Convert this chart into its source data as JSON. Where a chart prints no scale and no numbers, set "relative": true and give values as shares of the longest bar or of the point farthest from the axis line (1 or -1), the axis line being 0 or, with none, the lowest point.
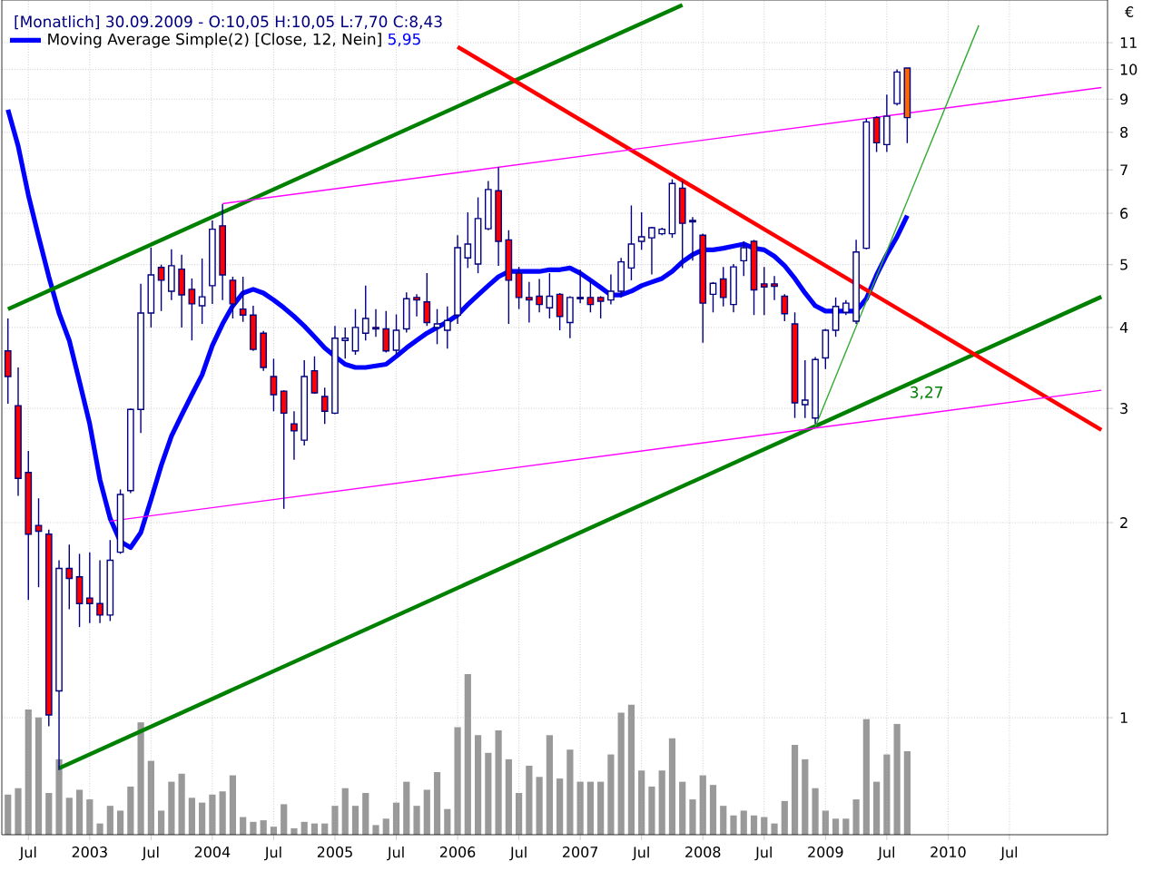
{
  "chart_data": [
    {
      "type": "candlestick",
      "title": "[Monatlich] 30.09.2009 - O:10,05 H:10,05 L:7,70 C:8,43",
      "ylabel": "€",
      "x": [
        "2002-05",
        "2002-06",
        "2002-07",
        "2002-08",
        "2002-09",
        "2002-10",
        "2002-11",
        "2002-12",
        "2003-01",
        "2003-02",
        "2003-03",
        "2003-04",
        "2003-05",
        "2003-06",
        "2003-07",
        "2003-08",
        "2003-09",
        "2003-10",
        "2003-11",
        "2003-12",
        "2004-01",
        "2004-02",
        "2004-03",
        "2004-04",
        "2004-05",
        "2004-06",
        "2004-07",
        "2004-08",
        "2004-09",
        "2004-10",
        "2004-11",
        "2004-12",
        "2005-01",
        "2005-02",
        "2005-03",
        "2005-04",
        "2005-05",
        "2005-06",
        "2005-07",
        "2005-08",
        "2005-09",
        "2005-10",
        "2005-11",
        "2005-12",
        "2006-01",
        "2006-02",
        "2006-03",
        "2006-04",
        "2006-05",
        "2006-06",
        "2006-07",
        "2006-08",
        "2006-09",
        "2006-10",
        "2006-11",
        "2006-12",
        "2007-01",
        "2007-02",
        "2007-03",
        "2007-04",
        "2007-05",
        "2007-06",
        "2007-07",
        "2007-08",
        "2007-09",
        "2007-10",
        "2007-11",
        "2007-12",
        "2008-01",
        "2008-02",
        "2008-03",
        "2008-04",
        "2008-05",
        "2008-06",
        "2008-07",
        "2008-08",
        "2008-09",
        "2008-10",
        "2008-11",
        "2008-12",
        "2009-01",
        "2009-02",
        "2009-03",
        "2009-04",
        "2009-05",
        "2009-06",
        "2009-07",
        "2009-08",
        "2009-09"
      ],
      "ohlc": [
        [
          3.68,
          4.13,
          3.05,
          3.36
        ],
        [
          3.03,
          3.47,
          2.2,
          2.34
        ],
        [
          2.39,
          2.58,
          1.52,
          1.92
        ],
        [
          1.98,
          2.18,
          1.59,
          1.94
        ],
        [
          1.92,
          1.95,
          0.97,
          1.01
        ],
        [
          1.1,
          1.75,
          0.83,
          1.7
        ],
        [
          1.7,
          1.85,
          1.47,
          1.64
        ],
        [
          1.65,
          1.79,
          1.38,
          1.5
        ],
        [
          1.53,
          1.8,
          1.4,
          1.5
        ],
        [
          1.5,
          1.75,
          1.4,
          1.44
        ],
        [
          1.44,
          1.88,
          1.41,
          1.75
        ],
        [
          1.8,
          2.25,
          1.79,
          2.21
        ],
        [
          2.24,
          3.0,
          2.22,
          2.99
        ],
        [
          2.99,
          4.67,
          2.75,
          4.21
        ],
        [
          4.21,
          5.31,
          4.0,
          4.82
        ],
        [
          4.95,
          5.0,
          4.24,
          4.73
        ],
        [
          4.55,
          5.28,
          4.41,
          4.98
        ],
        [
          4.92,
          5.18,
          4.0,
          4.49
        ],
        [
          4.58,
          4.76,
          3.82,
          4.35
        ],
        [
          4.32,
          5.11,
          4.05,
          4.46
        ],
        [
          4.64,
          5.85,
          4.35,
          5.67
        ],
        [
          5.74,
          6.2,
          4.41,
          4.82
        ],
        [
          4.73,
          4.79,
          4.13,
          4.35
        ],
        [
          4.27,
          4.79,
          4.08,
          4.18
        ],
        [
          4.18,
          4.32,
          3.68,
          3.7
        ],
        [
          3.92,
          3.95,
          3.43,
          3.47
        ],
        [
          3.36,
          3.58,
          2.97,
          3.15
        ],
        [
          3.19,
          3.2,
          2.1,
          2.95
        ],
        [
          2.84,
          2.97,
          2.5,
          2.77
        ],
        [
          2.68,
          3.56,
          2.63,
          3.36
        ],
        [
          3.43,
          3.61,
          3.16,
          3.17
        ],
        [
          3.13,
          3.23,
          2.84,
          2.97
        ],
        [
          2.95,
          4.02,
          2.94,
          3.85
        ],
        [
          3.82,
          4.0,
          3.58,
          3.85
        ],
        [
          3.68,
          4.27,
          3.63,
          4.0
        ],
        [
          3.92,
          4.64,
          3.82,
          4.13
        ],
        [
          4.0,
          4.27,
          3.87,
          3.98
        ],
        [
          3.98,
          4.24,
          3.66,
          3.68
        ],
        [
          3.69,
          4.19,
          3.63,
          3.96
        ],
        [
          3.98,
          4.53,
          3.93,
          4.43
        ],
        [
          4.45,
          4.5,
          4.16,
          4.41
        ],
        [
          4.38,
          4.85,
          4.02,
          4.07
        ],
        [
          4.0,
          4.27,
          3.77,
          4.05
        ],
        [
          3.96,
          4.31,
          3.71,
          4.1
        ],
        [
          4.18,
          5.55,
          4.05,
          5.31
        ],
        [
          5.12,
          6.02,
          4.94,
          5.38
        ],
        [
          5.01,
          6.35,
          4.85,
          5.89
        ],
        [
          5.68,
          6.73,
          5.65,
          6.53
        ],
        [
          6.5,
          7.07,
          4.98,
          5.43
        ],
        [
          5.46,
          5.65,
          4.05,
          4.73
        ],
        [
          4.85,
          4.96,
          4.27,
          4.45
        ],
        [
          4.45,
          4.7,
          4.07,
          4.41
        ],
        [
          4.47,
          4.75,
          4.22,
          4.34
        ],
        [
          4.29,
          4.85,
          4.13,
          4.47
        ],
        [
          4.5,
          4.52,
          3.96,
          4.16
        ],
        [
          4.07,
          4.47,
          3.85,
          4.45
        ],
        [
          4.45,
          4.91,
          4.36,
          4.43
        ],
        [
          4.45,
          4.73,
          4.22,
          4.34
        ],
        [
          4.45,
          4.47,
          4.13,
          4.39
        ],
        [
          4.41,
          4.83,
          4.34,
          4.55
        ],
        [
          4.55,
          5.12,
          4.45,
          5.05
        ],
        [
          4.94,
          6.17,
          4.73,
          5.38
        ],
        [
          5.43,
          6.02,
          5.27,
          5.52
        ],
        [
          5.5,
          5.72,
          4.83,
          5.7
        ],
        [
          5.58,
          5.7,
          5.55,
          5.67
        ],
        [
          5.58,
          6.77,
          5.5,
          6.67
        ],
        [
          6.56,
          6.73,
          4.94,
          5.79
        ],
        [
          5.85,
          5.92,
          5.07,
          5.82
        ],
        [
          5.55,
          5.58,
          3.79,
          4.36
        ],
        [
          4.5,
          4.7,
          4.22,
          4.68
        ],
        [
          4.75,
          4.96,
          4.31,
          4.45
        ],
        [
          4.34,
          5.01,
          4.22,
          4.96
        ],
        [
          5.07,
          5.43,
          4.8,
          5.31
        ],
        [
          5.43,
          5.46,
          4.18,
          4.57
        ],
        [
          4.67,
          4.96,
          4.18,
          4.62
        ],
        [
          4.67,
          4.8,
          4.41,
          4.63
        ],
        [
          4.47,
          4.5,
          4.09,
          4.2
        ],
        [
          4.05,
          4.22,
          2.9,
          3.06
        ],
        [
          3.04,
          3.56,
          2.9,
          3.09
        ],
        [
          2.9,
          3.6,
          2.84,
          3.57
        ],
        [
          3.59,
          3.98,
          3.45,
          3.96
        ],
        [
          3.96,
          4.45,
          3.87,
          4.31
        ],
        [
          4.22,
          4.41,
          4.18,
          4.36
        ],
        [
          4.09,
          5.46,
          4.05,
          5.23
        ],
        [
          5.3,
          8.4,
          5.28,
          8.3
        ],
        [
          8.43,
          8.47,
          7.46,
          7.71
        ],
        [
          7.66,
          9.15,
          7.46,
          8.47
        ],
        [
          8.86,
          10.0,
          8.8,
          9.91
        ],
        [
          10.05,
          10.05,
          7.7,
          8.43
        ]
      ],
      "colors": [
        "#ff0000",
        "#ff0000",
        "#ff0000",
        "#ff0000",
        "#ff0000",
        "#ffffff",
        "#ff0000",
        "#ff0000",
        "#ff0000",
        "#ff0000",
        "#ffffff",
        "#ffffff",
        "#ffffff",
        "#ffffff",
        "#ffffff",
        "#ff0000",
        "#ffffff",
        "#ff0000",
        "#ff0000",
        "#ffffff",
        "#ffffff",
        "#ff0000",
        "#ff0000",
        "#ff0000",
        "#ff0000",
        "#ff0000",
        "#ff0000",
        "#ff0000",
        "#ff0000",
        "#ffffff",
        "#ff0000",
        "#ff0000",
        "#ffffff",
        "#ffffff",
        "#ffffff",
        "#ffffff",
        "#ff0000",
        "#ff0000",
        "#ffffff",
        "#ffffff",
        "#ff0000",
        "#ff0000",
        "#ffffff",
        "#ffffff",
        "#ffffff",
        "#ffffff",
        "#ffffff",
        "#ffffff",
        "#ff0000",
        "#ff0000",
        "#ff0000",
        "#ff0000",
        "#ff0000",
        "#ffffff",
        "#ff0000",
        "#ffffff",
        "#ff0000",
        "#ff0000",
        "#ff0000",
        "#ffffff",
        "#ffffff",
        "#ffffff",
        "#ffffff",
        "#ffffff",
        "#ffffff",
        "#ffffff",
        "#ff0000",
        "#ff0000",
        "#ff0000",
        "#ffffff",
        "#ff0000",
        "#ffffff",
        "#ffffff",
        "#ff0000",
        "#ff0000",
        "#ff0000",
        "#ff0000",
        "#ff0000",
        "#ffffff",
        "#ffffff",
        "#ffffff",
        "#ffffff",
        "#ffffff",
        "#ffffff",
        "#ffffff",
        "#ff0000",
        "#ffffff",
        "#ffffff",
        "#ff6600"
      ],
      "series": [
        {
          "type": "line",
          "name": "Moving Average Simple(2) [Close, 12, Nein]",
          "color": "#0000ff",
          "values": [
            8.67,
            7.62,
            6.4,
            5.52,
            4.79,
            4.21,
            3.82,
            3.3,
            2.84,
            2.33,
            2.03,
            1.87,
            1.83,
            1.93,
            2.17,
            2.45,
            2.72,
            2.93,
            3.15,
            3.38,
            3.75,
            4.05,
            4.32,
            4.52,
            4.58,
            4.52,
            4.41,
            4.29,
            4.16,
            4.02,
            3.87,
            3.72,
            3.61,
            3.51,
            3.47,
            3.47,
            3.49,
            3.51,
            3.61,
            3.72,
            3.82,
            3.92,
            4.0,
            4.08,
            4.18,
            4.34,
            4.49,
            4.64,
            4.79,
            4.88,
            4.88,
            4.88,
            4.88,
            4.91,
            4.91,
            4.94,
            4.85,
            4.73,
            4.61,
            4.49,
            4.49,
            4.55,
            4.64,
            4.7,
            4.76,
            4.88,
            5.05,
            5.18,
            5.27,
            5.27,
            5.3,
            5.34,
            5.38,
            5.3,
            5.27,
            5.15,
            4.98,
            4.76,
            4.52,
            4.32,
            4.24,
            4.24,
            4.24,
            4.24,
            4.43,
            4.82,
            5.18,
            5.52,
            5.95
          ]
        },
        {
          "type": "line",
          "color": "#008000",
          "x": [
            "2002-05",
            "2007-11"
          ],
          "values": [
            4.27,
            12.57
          ]
        },
        {
          "type": "line",
          "color": "#008000",
          "x": [
            "2002-10",
            "2011-04"
          ],
          "values": [
            0.836,
            4.46
          ]
        },
        {
          "type": "line",
          "color": "#ff0000",
          "x": [
            "2006-01",
            "2011-04"
          ],
          "values": [
            10.84,
            2.78
          ]
        },
        {
          "type": "line",
          "color": "#ff00ff",
          "x": [
            "2004-02",
            "2011-04"
          ],
          "values": [
            6.21,
            9.38
          ]
        },
        {
          "type": "line",
          "color": "#ff00ff",
          "x": [
            "2003-03",
            "2011-04"
          ],
          "values": [
            2.01,
            3.2
          ]
        },
        {
          "type": "line",
          "color": "#33aa33",
          "x": [
            "2008-12",
            "2010-04"
          ],
          "values": [
            2.81,
            11.7
          ]
        }
      ],
      "xlim": [
        "2002-04-13",
        "2011-04-19"
      ],
      "xticks": [
        {
          "value": "2002-07",
          "label": "Jul"
        },
        {
          "value": "2003-01",
          "label": "2003"
        },
        {
          "value": "2003-07",
          "label": "Jul"
        },
        {
          "value": "2004-01",
          "label": "2004"
        },
        {
          "value": "2004-07",
          "label": "Jul"
        },
        {
          "value": "2005-01",
          "label": "2005"
        },
        {
          "value": "2005-07",
          "label": "Jul"
        },
        {
          "value": "2006-01",
          "label": "2006"
        },
        {
          "value": "2006-07",
          "label": "Jul"
        },
        {
          "value": "2007-01",
          "label": "2007"
        },
        {
          "value": "2007-07",
          "label": "Jul"
        },
        {
          "value": "2008-01",
          "label": "2008"
        },
        {
          "value": "2008-07",
          "label": "Jul"
        },
        {
          "value": "2009-01",
          "label": "2009"
        },
        {
          "value": "2009-07",
          "label": "Jul"
        },
        {
          "value": "2010-01",
          "label": "2010"
        },
        {
          "value": "2010-07",
          "label": "Jul"
        }
      ],
      "ylim": [
        0.66,
        12.8
      ],
      "yticks": [
        1,
        2,
        3,
        4,
        5,
        6,
        7,
        8,
        9,
        10,
        11
      ],
      "log": true,
      "grid": true,
      "legend": "top left",
      "annotations": [
        "5,95",
        {
          "text": "3,27",
          "x": "2009-09",
          "y": 3.27
        }
      ]
    },
    {
      "type": "bar",
      "relative": true,
      "tick_labels": false,
      "color": "#999999",
      "x": [
        "2002-05",
        "2002-06",
        "2002-07",
        "2002-08",
        "2002-09",
        "2002-10",
        "2002-11",
        "2002-12",
        "2003-01",
        "2003-02",
        "2003-03",
        "2003-04",
        "2003-05",
        "2003-06",
        "2003-07",
        "2003-08",
        "2003-09",
        "2003-10",
        "2003-11",
        "2003-12",
        "2004-01",
        "2004-02",
        "2004-03",
        "2004-04",
        "2004-05",
        "2004-06",
        "2004-07",
        "2004-08",
        "2004-09",
        "2004-10",
        "2004-11",
        "2004-12",
        "2005-01",
        "2005-02",
        "2005-03",
        "2005-04",
        "2005-05",
        "2005-06",
        "2005-07",
        "2005-08",
        "2005-09",
        "2005-10",
        "2005-11",
        "2005-12",
        "2006-01",
        "2006-02",
        "2006-03",
        "2006-04",
        "2006-05",
        "2006-06",
        "2006-07",
        "2006-08",
        "2006-09",
        "2006-10",
        "2006-11",
        "2006-12",
        "2007-01",
        "2007-02",
        "2007-03",
        "2007-04",
        "2007-05",
        "2007-06",
        "2007-07",
        "2007-08",
        "2007-09",
        "2007-10",
        "2007-11",
        "2007-12",
        "2008-01",
        "2008-02",
        "2008-03",
        "2008-04",
        "2008-05",
        "2008-06",
        "2008-07",
        "2008-08",
        "2008-09",
        "2008-10",
        "2008-11",
        "2008-12",
        "2009-01",
        "2009-02",
        "2009-03",
        "2009-04",
        "2009-05",
        "2009-06",
        "2009-07",
        "2009-08",
        "2009-09"
      ],
      "values": [
        0.25,
        0.29,
        0.78,
        0.73,
        0.26,
        0.47,
        0.23,
        0.28,
        0.22,
        0.07,
        0.18,
        0.15,
        0.3,
        0.7,
        0.46,
        0.15,
        0.33,
        0.38,
        0.23,
        0.2,
        0.25,
        0.27,
        0.37,
        0.11,
        0.08,
        0.09,
        0.05,
        0.19,
        0.04,
        0.08,
        0.07,
        0.07,
        0.18,
        0.29,
        0.18,
        0.26,
        0.06,
        0.1,
        0.2,
        0.33,
        0.18,
        0.28,
        0.39,
        0.16,
        0.67,
        1,
        0.62,
        0.51,
        0.65,
        0.47,
        0.26,
        0.43,
        0.36,
        0.62,
        0.35,
        0.53,
        0.33,
        0.33,
        0.33,
        0.5,
        0.76,
        0.81,
        0.4,
        0.3,
        0.4,
        0.6,
        0.33,
        0.22,
        0.37,
        0.31,
        0.18,
        0.12,
        0.15,
        0.12,
        0.11,
        0.07,
        0.21,
        0.56,
        0.47,
        0.29,
        0.15,
        0.1,
        0.1,
        0.22,
        0.72,
        0.33,
        0.5,
        0.69,
        0.52
      ],
      "xlim": [
        "2002-04-13",
        "2011-04-19"
      ]
    }
  ]
}
